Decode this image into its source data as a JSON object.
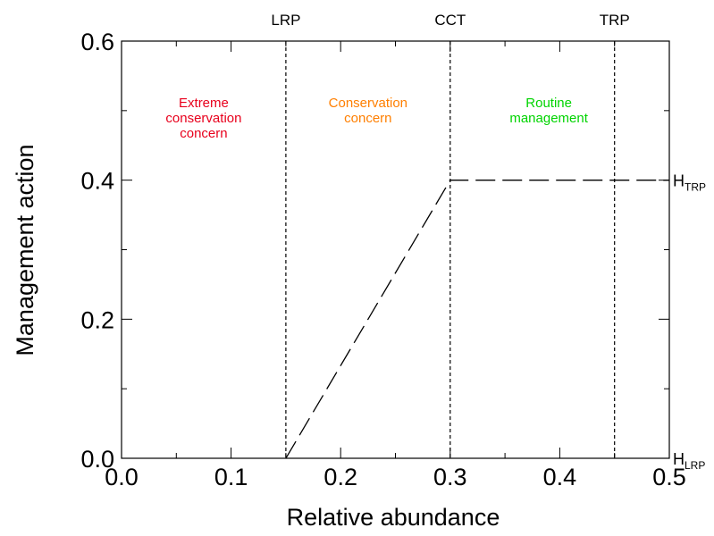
{
  "chart_data": {
    "type": "line",
    "xlabel": "Relative abundance",
    "ylabel": "Management action",
    "xlim": [
      0,
      0.5
    ],
    "ylim": [
      0,
      0.6
    ],
    "x_ticks": [
      "0.0",
      "0.1",
      "0.2",
      "0.3",
      "0.4",
      "0.5"
    ],
    "y_ticks": [
      "0.0",
      "0.2",
      "0.4",
      "0.6"
    ],
    "grid": false,
    "series": [
      {
        "name": "",
        "line_style": "long-dash",
        "color": "#000000",
        "x": [
          0.15,
          0.3,
          0.5
        ],
        "y": [
          0.0,
          0.4,
          0.4
        ]
      }
    ],
    "reference_lines": [
      {
        "label": "LRP",
        "x": 0.15
      },
      {
        "label": "CCT",
        "x": 0.3
      },
      {
        "label": "TRP",
        "x": 0.45
      }
    ],
    "right_labels": [
      {
        "main": "H",
        "sub": "TRP",
        "y": 0.4
      },
      {
        "main": "H",
        "sub": "LRP",
        "y": 0.0
      }
    ],
    "zones": [
      {
        "lines": [
          "Extreme",
          "conservation",
          "concern"
        ],
        "x": 0.075,
        "color": "#e8001c"
      },
      {
        "lines": [
          "Conservation",
          "concern"
        ],
        "x": 0.225,
        "color": "#ff7f00"
      },
      {
        "lines": [
          "Routine",
          "management"
        ],
        "x": 0.39,
        "color": "#00d400"
      }
    ]
  }
}
